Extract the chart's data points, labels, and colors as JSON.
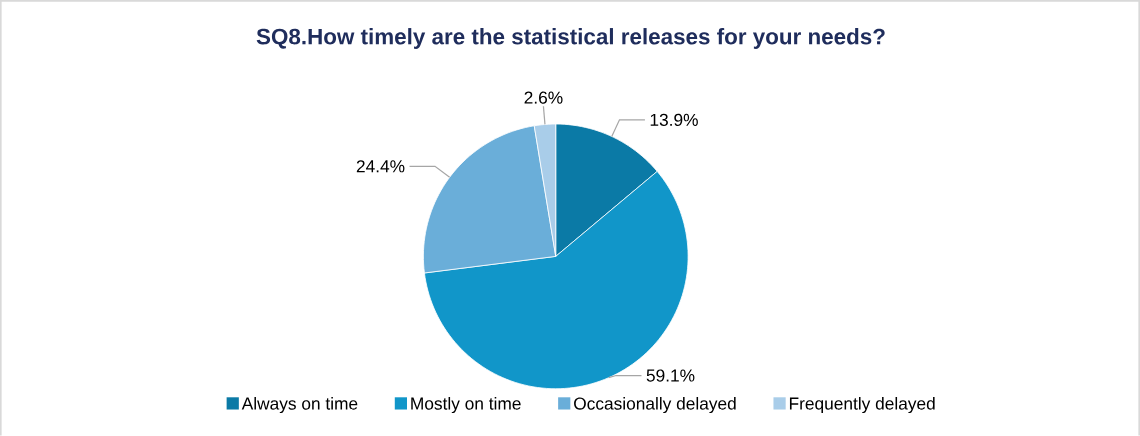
{
  "chart_data": {
    "type": "pie",
    "title": "SQ8.How timely are the statistical releases for your needs?",
    "categories": [
      "Always on time",
      "Mostly on time",
      "Occasionally delayed",
      "Frequently delayed"
    ],
    "values": [
      13.9,
      59.1,
      24.4,
      2.6
    ],
    "colors": [
      "#0b7aa6",
      "#1196c9",
      "#6aaed9",
      "#a9cde9"
    ],
    "value_labels": [
      "13.9%",
      "59.1%",
      "24.4%",
      "2.6%"
    ],
    "legend": "bottom"
  }
}
